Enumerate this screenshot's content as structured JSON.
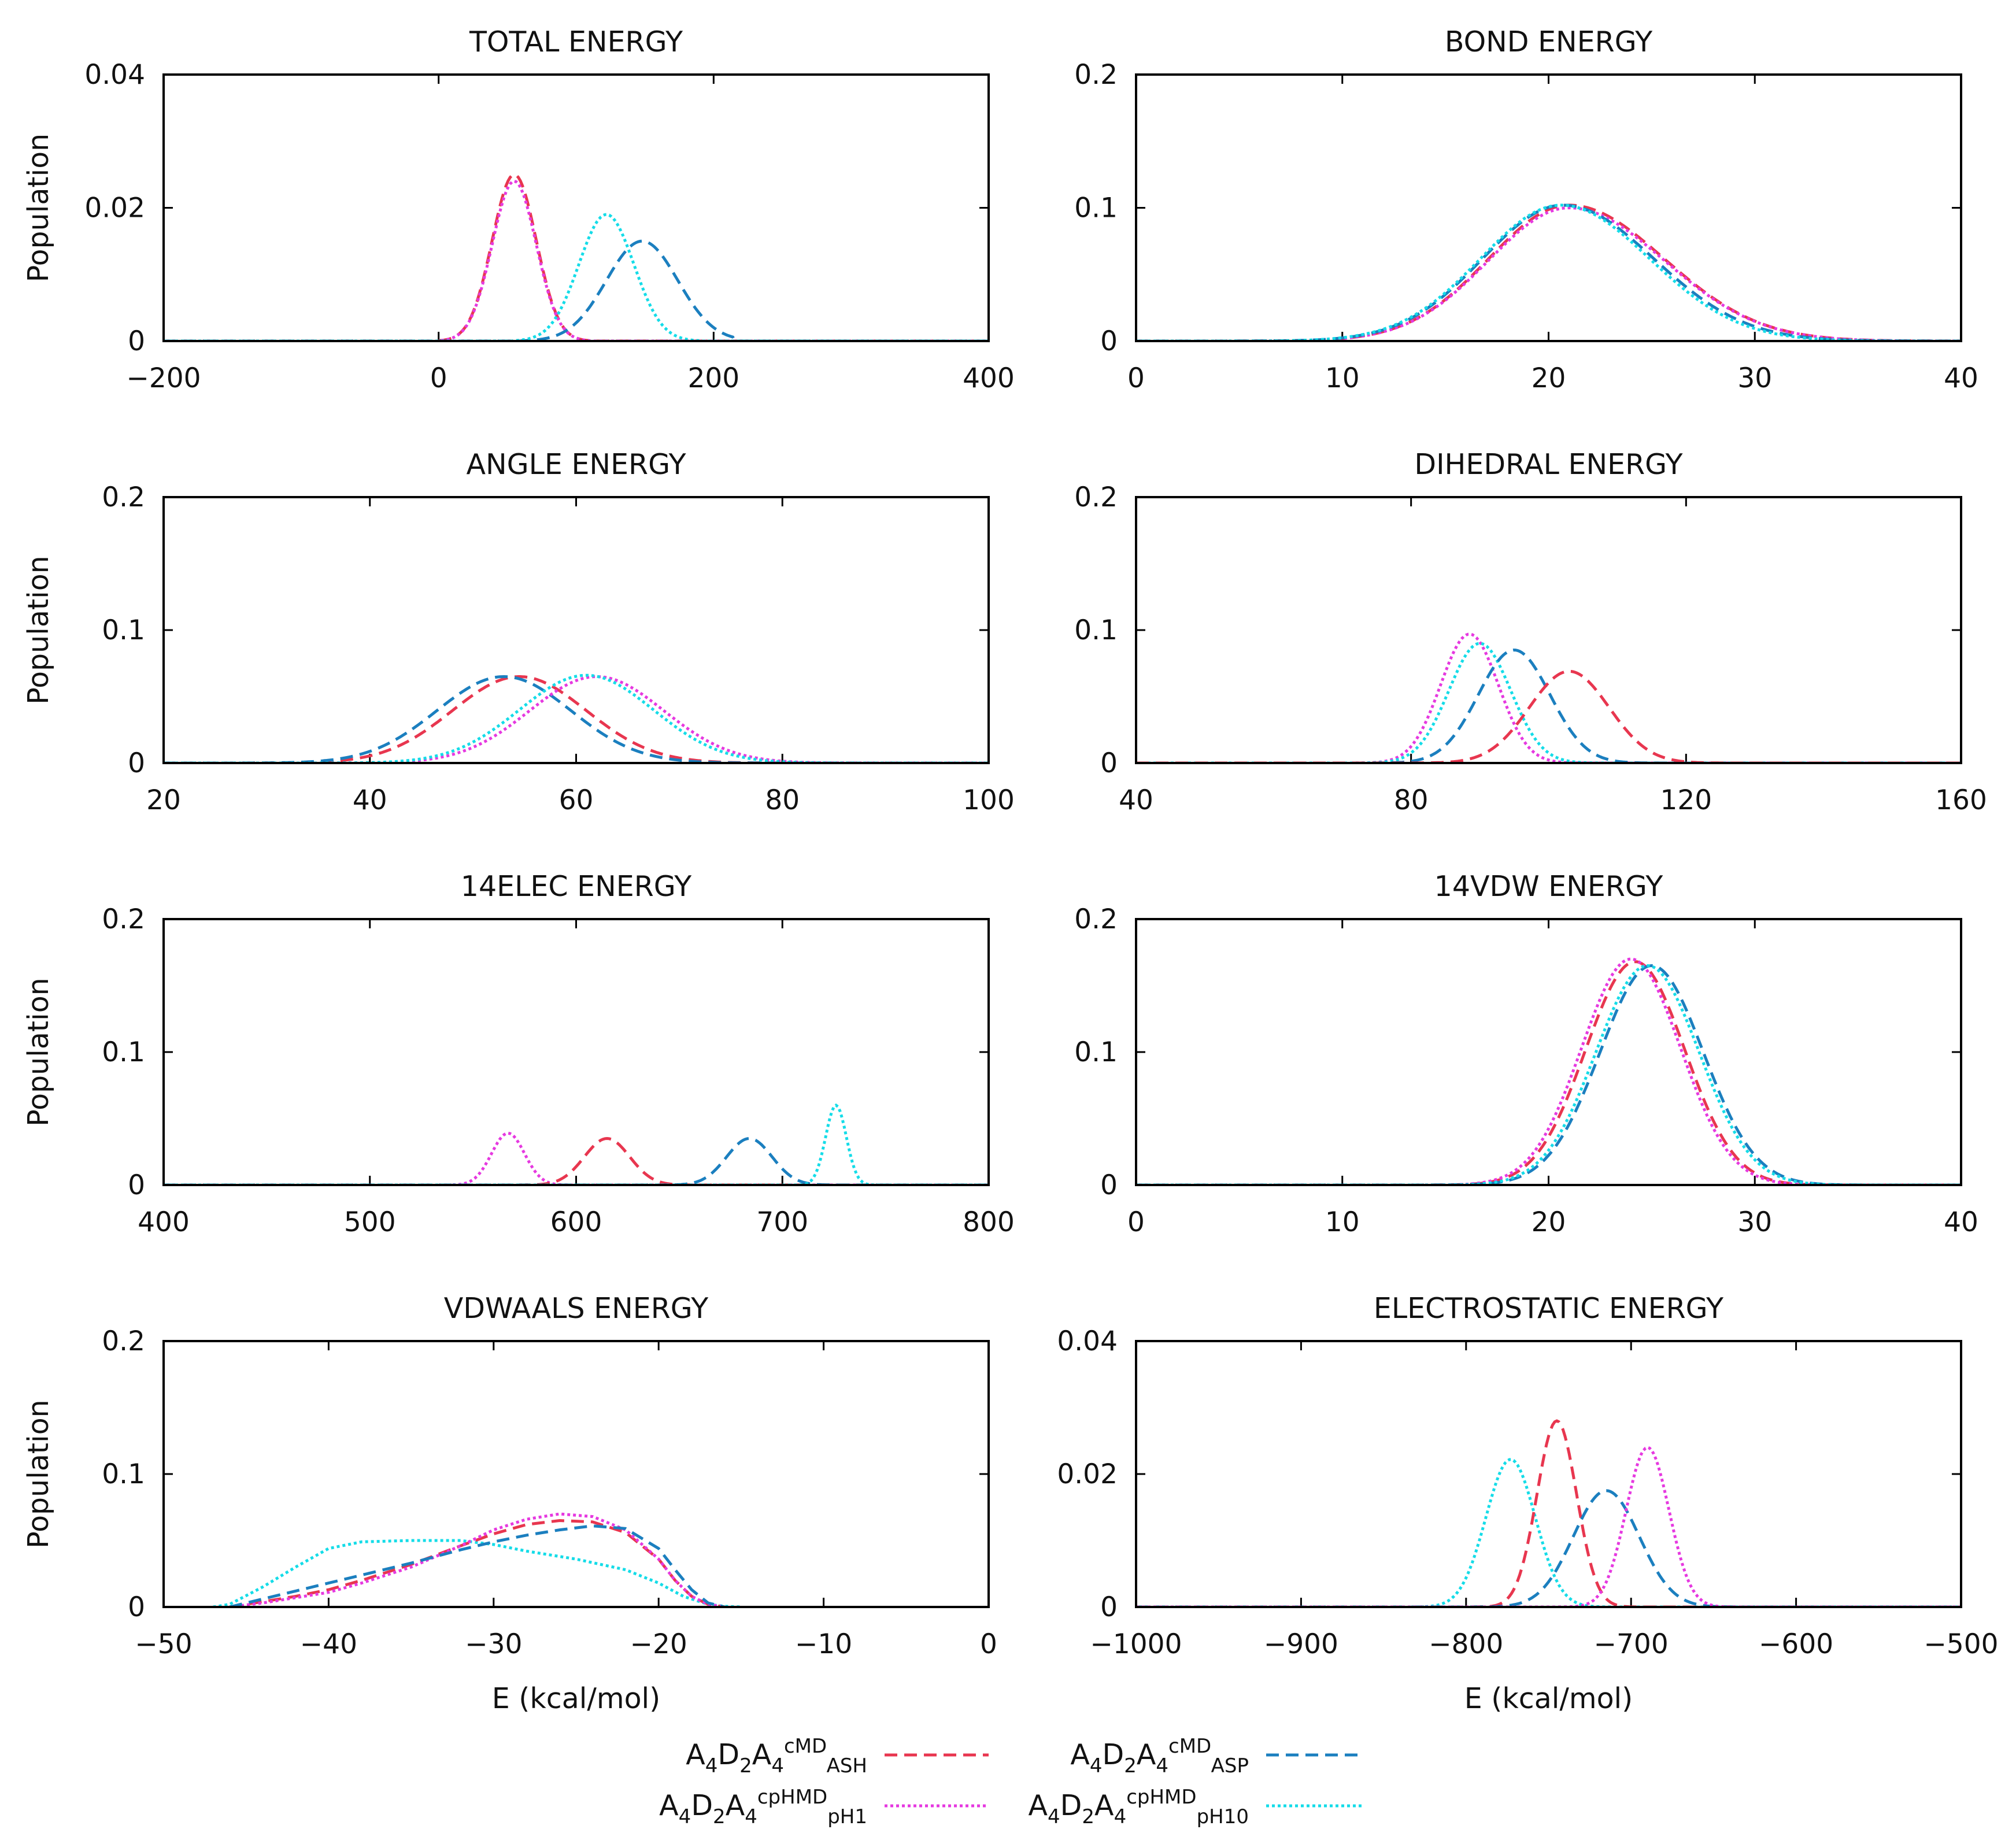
{
  "chart_data": [
    {
      "type": "line",
      "title": "TOTAL ENERGY",
      "xlabel": "",
      "ylabel": "Population",
      "xlim": [
        -200,
        400
      ],
      "ylim": [
        0,
        0.04
      ],
      "xticks": [
        "-200",
        "0",
        "200",
        "400"
      ],
      "yticks": [
        "0",
        "0.02",
        "0.04"
      ],
      "ytick_values": [
        0,
        0.02,
        0.04
      ],
      "grid": false,
      "series": [
        {
          "style": "ash",
          "curve": "gauss",
          "mu": 55,
          "sigma": 16,
          "amp": 0.025,
          "lo": 0,
          "hi": 110
        },
        {
          "style": "ph1",
          "curve": "gauss",
          "mu": 55,
          "sigma": 16,
          "amp": 0.024,
          "lo": 0,
          "hi": 110
        },
        {
          "style": "asp",
          "curve": "gauss",
          "mu": 148,
          "sigma": 26,
          "amp": 0.015,
          "lo": 60,
          "hi": 215
        },
        {
          "style": "ph10",
          "curve": "gauss",
          "mu": 122,
          "sigma": 20,
          "amp": 0.019,
          "lo": 55,
          "hi": 190
        }
      ]
    },
    {
      "type": "line",
      "title": "BOND ENERGY",
      "xlabel": "",
      "ylabel": "",
      "xlim": [
        0,
        40
      ],
      "ylim": [
        0,
        0.2
      ],
      "xticks": [
        "0",
        "10",
        "20",
        "30",
        "40"
      ],
      "yticks": [
        "0",
        "0.1",
        "0.2"
      ],
      "ytick_values": [
        0,
        0.1,
        0.2
      ],
      "grid": false,
      "series": [
        {
          "style": "ash",
          "curve": "skew",
          "mu": 21,
          "sl": 3.9,
          "sr": 4.6,
          "amp": 0.102
        },
        {
          "style": "ph1",
          "curve": "skew",
          "mu": 21,
          "sl": 3.9,
          "sr": 4.6,
          "amp": 0.1
        },
        {
          "style": "asp",
          "curve": "skew",
          "mu": 20.7,
          "sl": 3.9,
          "sr": 4.4,
          "amp": 0.102
        },
        {
          "style": "ph10",
          "curve": "skew",
          "mu": 20.6,
          "sl": 3.9,
          "sr": 4.3,
          "amp": 0.102
        }
      ]
    },
    {
      "type": "line",
      "title": "ANGLE ENERGY",
      "xlabel": "",
      "ylabel": "Population",
      "xlim": [
        20,
        100
      ],
      "ylim": [
        0,
        0.2
      ],
      "xticks": [
        "20",
        "40",
        "60",
        "80",
        "100"
      ],
      "yticks": [
        "0",
        "0.1",
        "0.2"
      ],
      "ytick_values": [
        0,
        0.1,
        0.2
      ],
      "grid": false,
      "series": [
        {
          "style": "ash",
          "curve": "gauss",
          "mu": 54.5,
          "sigma": 6.5,
          "amp": 0.065
        },
        {
          "style": "asp",
          "curve": "gauss",
          "mu": 53,
          "sigma": 6.5,
          "amp": 0.065
        },
        {
          "style": "ph1",
          "curve": "gauss",
          "mu": 62,
          "sigma": 6.5,
          "amp": 0.065
        },
        {
          "style": "ph10",
          "curve": "gauss",
          "mu": 61,
          "sigma": 6.5,
          "amp": 0.066
        }
      ]
    },
    {
      "type": "line",
      "title": "DIHEDRAL ENERGY",
      "xlabel": "",
      "ylabel": "",
      "xlim": [
        40,
        160
      ],
      "ylim": [
        0,
        0.2
      ],
      "xticks": [
        "40",
        "80",
        "120",
        "160"
      ],
      "yticks": [
        "0",
        "0.1",
        "0.2"
      ],
      "ytick_values": [
        0,
        0.1,
        0.2
      ],
      "grid": false,
      "series": [
        {
          "style": "ph1",
          "curve": "gauss",
          "mu": 88.5,
          "sigma": 4.2,
          "amp": 0.097
        },
        {
          "style": "ph10",
          "curve": "gauss",
          "mu": 90,
          "sigma": 4.5,
          "amp": 0.09
        },
        {
          "style": "asp",
          "curve": "gauss",
          "mu": 95,
          "sigma": 5.2,
          "amp": 0.085
        },
        {
          "style": "ash",
          "curve": "gauss",
          "mu": 103,
          "sigma": 5.8,
          "amp": 0.069
        }
      ]
    },
    {
      "type": "line",
      "title": "14ELEC ENERGY",
      "xlabel": "",
      "ylabel": "Population",
      "xlim": [
        400,
        800
      ],
      "ylim": [
        0,
        0.2
      ],
      "xticks": [
        "400",
        "500",
        "600",
        "700",
        "800"
      ],
      "yticks": [
        "0",
        "0.1",
        "0.2"
      ],
      "ytick_values": [
        0,
        0.1,
        0.2
      ],
      "grid": false,
      "series": [
        {
          "style": "ph1",
          "curve": "gauss",
          "mu": 567,
          "sigma": 8,
          "amp": 0.039
        },
        {
          "style": "ash",
          "curve": "gauss",
          "mu": 615,
          "sigma": 11,
          "amp": 0.035
        },
        {
          "style": "asp",
          "curve": "gauss",
          "mu": 684,
          "sigma": 11,
          "amp": 0.035
        },
        {
          "style": "ph10",
          "curve": "gauss",
          "mu": 726,
          "sigma": 5,
          "amp": 0.06
        }
      ]
    },
    {
      "type": "line",
      "title": "14VDW ENERGY",
      "xlabel": "",
      "ylabel": "",
      "xlim": [
        0,
        40
      ],
      "ylim": [
        0,
        0.2
      ],
      "xticks": [
        "0",
        "10",
        "20",
        "30",
        "40"
      ],
      "yticks": [
        "0",
        "0.1",
        "0.2"
      ],
      "ytick_values": [
        0,
        0.1,
        0.2
      ],
      "grid": false,
      "series": [
        {
          "style": "ash",
          "curve": "gauss",
          "mu": 24.2,
          "sigma": 2.4,
          "amp": 0.168
        },
        {
          "style": "ph1",
          "curve": "gauss",
          "mu": 24,
          "sigma": 2.4,
          "amp": 0.17
        },
        {
          "style": "asp",
          "curve": "gauss",
          "mu": 25,
          "sigma": 2.5,
          "amp": 0.165
        },
        {
          "style": "ph10",
          "curve": "gauss",
          "mu": 24.8,
          "sigma": 2.5,
          "amp": 0.165
        }
      ]
    },
    {
      "type": "line",
      "title": "VDWAALS ENERGY",
      "xlabel": "E (kcal/mol)",
      "ylabel": "Population",
      "xlim": [
        -50,
        0
      ],
      "ylim": [
        0,
        0.2
      ],
      "xticks": [
        "-50",
        "-40",
        "-30",
        "-20",
        "-10",
        "0"
      ],
      "yticks": [
        "0",
        "0.1",
        "0.2"
      ],
      "ytick_values": [
        0,
        0.1,
        0.2
      ],
      "grid": false,
      "series": [
        {
          "style": "ph10",
          "curve": "points",
          "x": [
            -47,
            -46,
            -44,
            -42,
            -40,
            -38,
            -35,
            -32,
            -30,
            -28,
            -25,
            -22,
            -20,
            -18.5,
            -17,
            -16,
            -15
          ],
          "y": [
            0,
            0.002,
            0.015,
            0.03,
            0.044,
            0.049,
            0.05,
            0.05,
            0.047,
            0.042,
            0.036,
            0.028,
            0.018,
            0.008,
            0.002,
            0.0005,
            0
          ]
        },
        {
          "style": "ash",
          "curve": "points",
          "x": [
            -46,
            -44,
            -42,
            -40,
            -38,
            -35,
            -32,
            -30,
            -28,
            -26,
            -24,
            -22,
            -20,
            -19,
            -18,
            -17,
            -16
          ],
          "y": [
            0,
            0.004,
            0.008,
            0.013,
            0.02,
            0.032,
            0.046,
            0.055,
            0.062,
            0.065,
            0.064,
            0.056,
            0.036,
            0.02,
            0.008,
            0.002,
            0
          ]
        },
        {
          "style": "ph1",
          "curve": "points",
          "x": [
            -46,
            -44,
            -42,
            -40,
            -38,
            -35,
            -32,
            -30,
            -28,
            -26,
            -24,
            -22,
            -20,
            -19,
            -18,
            -17,
            -16
          ],
          "y": [
            0,
            0.003,
            0.007,
            0.011,
            0.018,
            0.03,
            0.046,
            0.058,
            0.066,
            0.07,
            0.068,
            0.058,
            0.036,
            0.02,
            0.008,
            0.002,
            0
          ]
        },
        {
          "style": "asp",
          "curve": "points",
          "x": [
            -46,
            -44,
            -42,
            -40,
            -38,
            -35,
            -32,
            -30,
            -28,
            -26,
            -24,
            -22,
            -20,
            -19,
            -18,
            -17,
            -16
          ],
          "y": [
            0,
            0.006,
            0.012,
            0.018,
            0.024,
            0.033,
            0.043,
            0.049,
            0.054,
            0.058,
            0.061,
            0.059,
            0.044,
            0.028,
            0.013,
            0.003,
            0
          ]
        }
      ]
    },
    {
      "type": "line",
      "title": "ELECTROSTATIC ENERGY",
      "xlabel": "E (kcal/mol)",
      "ylabel": "",
      "xlim": [
        -1000,
        -500
      ],
      "ylim": [
        0,
        0.04
      ],
      "xticks": [
        "-1000",
        "-900",
        "-800",
        "-700",
        "-600",
        "-500"
      ],
      "yticks": [
        "0",
        "0.02",
        "0.04"
      ],
      "ytick_values": [
        0,
        0.02,
        0.04
      ],
      "grid": false,
      "series": [
        {
          "style": "ph10",
          "curve": "gauss",
          "mu": -773,
          "sigma": 15,
          "amp": 0.0222
        },
        {
          "style": "ash",
          "curve": "gauss",
          "mu": -745,
          "sigma": 12,
          "amp": 0.028
        },
        {
          "style": "asp",
          "curve": "gauss",
          "mu": -715,
          "sigma": 20,
          "amp": 0.0175
        },
        {
          "style": "ph1",
          "curve": "gauss",
          "mu": -690,
          "sigma": 13,
          "amp": 0.024
        }
      ]
    }
  ],
  "styles": {
    "ash": {
      "color": "#e8364f",
      "dash": "22,12"
    },
    "asp": {
      "color": "#1b7fbf",
      "dash": "22,12"
    },
    "ph1": {
      "color": "#e639e0",
      "dash": "5,5"
    },
    "ph10": {
      "color": "#15dce8",
      "dash": "5,5"
    }
  },
  "legend": {
    "placement": "bottom-center",
    "entries": [
      {
        "style": "ash",
        "base": "A",
        "s1": "4",
        "d": "D",
        "s2": "2",
        "a2": "A",
        "s3": "4",
        "sup": "cMD",
        "sub": "ASH"
      },
      {
        "style": "asp",
        "base": "A",
        "s1": "4",
        "d": "D",
        "s2": "2",
        "a2": "A",
        "s3": "4",
        "sup": "cMD",
        "sub": "ASP"
      },
      {
        "style": "ph1",
        "base": "A",
        "s1": "4",
        "d": "D",
        "s2": "2",
        "a2": "A",
        "s3": "4",
        "sup": "cpHMD",
        "sub": "pH1"
      },
      {
        "style": "ph10",
        "base": "A",
        "s1": "4",
        "d": "D",
        "s2": "2",
        "a2": "A",
        "s3": "4",
        "sup": "cpHMD",
        "sub": "pH10"
      }
    ]
  }
}
